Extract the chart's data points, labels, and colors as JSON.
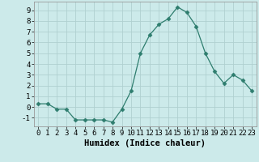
{
  "x": [
    0,
    1,
    2,
    3,
    4,
    5,
    6,
    7,
    8,
    9,
    10,
    11,
    12,
    13,
    14,
    15,
    16,
    17,
    18,
    19,
    20,
    21,
    22,
    23
  ],
  "y": [
    0.3,
    0.3,
    -0.2,
    -0.2,
    -1.2,
    -1.2,
    -1.2,
    -1.2,
    -1.4,
    -0.2,
    1.5,
    5.0,
    6.7,
    7.7,
    8.2,
    9.3,
    8.8,
    7.5,
    5.0,
    3.3,
    2.2,
    3.0,
    2.5,
    1.5
  ],
  "line_color": "#2e7d6e",
  "marker": "D",
  "marker_size": 2.5,
  "bg_color": "#cceaea",
  "grid_color_major": "#b0d0d0",
  "grid_color_minor": "#c8e4e4",
  "xlabel": "Humidex (Indice chaleur)",
  "xlim": [
    -0.5,
    23.5
  ],
  "ylim": [
    -1.8,
    9.8
  ],
  "yticks": [
    -1,
    0,
    1,
    2,
    3,
    4,
    5,
    6,
    7,
    8,
    9
  ],
  "xticks": [
    0,
    1,
    2,
    3,
    4,
    5,
    6,
    7,
    8,
    9,
    10,
    11,
    12,
    13,
    14,
    15,
    16,
    17,
    18,
    19,
    20,
    21,
    22,
    23
  ],
  "font_size": 6.5,
  "xlabel_fontsize": 7.5
}
